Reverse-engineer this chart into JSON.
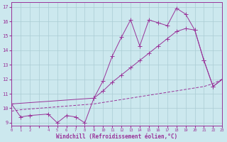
{
  "xlabel": "Windchill (Refroidissement éolien,°C)",
  "bg_color": "#cce8ee",
  "grid_color": "#aaccd4",
  "line_color": "#993399",
  "line1_x": [
    0,
    1,
    2,
    4,
    5,
    6,
    7,
    8,
    9,
    10,
    11,
    12,
    13,
    14,
    15,
    16,
    17,
    18,
    19,
    20,
    21,
    22,
    23
  ],
  "line1_y": [
    10.3,
    9.4,
    9.5,
    9.6,
    9.0,
    9.5,
    9.4,
    9.0,
    10.7,
    11.9,
    13.6,
    14.9,
    16.1,
    14.3,
    16.1,
    15.9,
    15.7,
    16.9,
    16.5,
    15.4,
    13.3,
    11.5,
    12.0
  ],
  "line2_x": [
    0,
    9,
    10,
    11,
    12,
    13,
    14,
    15,
    16,
    17,
    18,
    19,
    20,
    21,
    22,
    23
  ],
  "line2_y": [
    10.3,
    10.7,
    11.2,
    11.8,
    12.3,
    12.8,
    13.3,
    13.8,
    14.3,
    14.8,
    15.3,
    15.5,
    15.4,
    13.3,
    11.5,
    12.0
  ],
  "line3_x": [
    0,
    1,
    2,
    3,
    4,
    5,
    6,
    7,
    8,
    9,
    10,
    11,
    12,
    13,
    14,
    15,
    16,
    17,
    18,
    19,
    20,
    21,
    22,
    23
  ],
  "line3_y": [
    9.8,
    9.9,
    9.95,
    10.0,
    10.05,
    10.1,
    10.15,
    10.2,
    10.25,
    10.3,
    10.4,
    10.5,
    10.6,
    10.7,
    10.8,
    10.9,
    11.0,
    11.1,
    11.2,
    11.3,
    11.4,
    11.5,
    11.7,
    12.0
  ],
  "xlim": [
    0,
    23
  ],
  "ylim": [
    8.8,
    17.3
  ],
  "yticks": [
    9,
    10,
    11,
    12,
    13,
    14,
    15,
    16,
    17
  ],
  "xticklabels": [
    "0",
    "1",
    "2",
    "",
    "4",
    "5",
    "6",
    "7",
    "8",
    "9",
    "10",
    "11",
    "12",
    "13",
    "14",
    "15",
    "16",
    "17",
    "18",
    "19",
    "20",
    "21",
    "22",
    "23"
  ]
}
